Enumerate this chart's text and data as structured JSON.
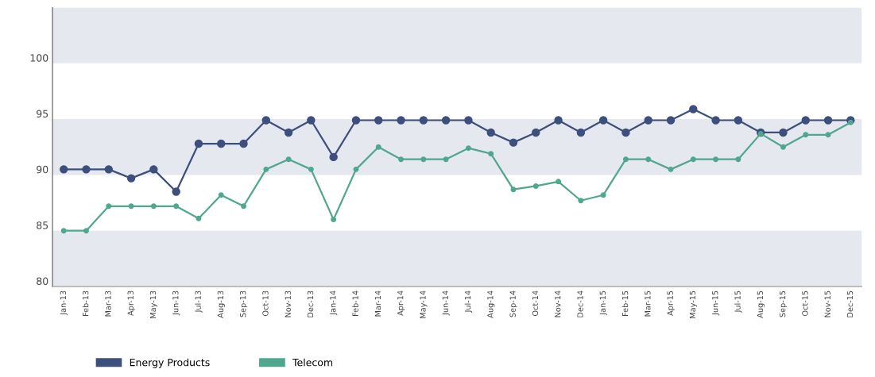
{
  "chart_data": {
    "type": "line",
    "categories": [
      "Jan-13",
      "Feb-13",
      "Mar-13",
      "Apr-13",
      "May-13",
      "Jun-13",
      "Jul-13",
      "Aug-13",
      "Sep-13",
      "Oct-13",
      "Nov-13",
      "Dec-13",
      "Jan-14",
      "Feb-14",
      "Mar-14",
      "Apr-14",
      "May-14",
      "Jun-14",
      "Jul-14",
      "Aug-14",
      "Sep-14",
      "Oct-14",
      "Nov-14",
      "Dec-14",
      "Jan-15",
      "Feb-15",
      "Mar-15",
      "Apr-15",
      "May-15",
      "Jun-15",
      "Jul-15",
      "Aug-15",
      "Sep-15",
      "Oct-15",
      "Nov-15",
      "Dec-15"
    ],
    "series": [
      {
        "name": "Energy Products",
        "color": "#3d4f7c",
        "values": [
          90.0,
          90.0,
          90.0,
          89.2,
          90.0,
          88.0,
          92.3,
          92.3,
          92.3,
          94.4,
          93.3,
          94.4,
          91.1,
          94.4,
          94.4,
          94.4,
          94.4,
          94.4,
          94.4,
          93.3,
          92.4,
          93.3,
          94.4,
          93.3,
          94.4,
          93.3,
          94.4,
          94.4,
          95.4,
          94.4,
          94.4,
          93.3,
          93.3,
          94.4,
          94.4,
          94.4
        ]
      },
      {
        "name": "Telecom",
        "color": "#4fa88e",
        "values": [
          84.5,
          84.5,
          86.7,
          86.7,
          86.7,
          86.7,
          85.6,
          87.7,
          86.7,
          90.0,
          90.9,
          90.0,
          85.5,
          90.0,
          92.0,
          90.9,
          90.9,
          90.9,
          91.9,
          91.4,
          88.2,
          88.5,
          88.9,
          87.2,
          87.7,
          90.9,
          90.9,
          90.0,
          90.9,
          90.9,
          90.9,
          93.2,
          92.0,
          93.1,
          93.1,
          94.2
        ]
      }
    ],
    "ylim": [
      79.5,
      104.5
    ],
    "yticks": [
      80,
      85,
      90,
      95,
      100
    ],
    "bands": [
      {
        "axis": "y",
        "from": 79.5,
        "to": 84.5,
        "color": "#e6e8f0"
      },
      {
        "axis": "y",
        "from": 89.5,
        "to": 94.5,
        "color": "#e6e8f0"
      },
      {
        "axis": "y",
        "from": 99.5,
        "to": 104.5,
        "color": "#e6e8f0"
      }
    ],
    "grid": false,
    "legend": "bottom left",
    "marker": "circle",
    "line_style": "solid"
  }
}
